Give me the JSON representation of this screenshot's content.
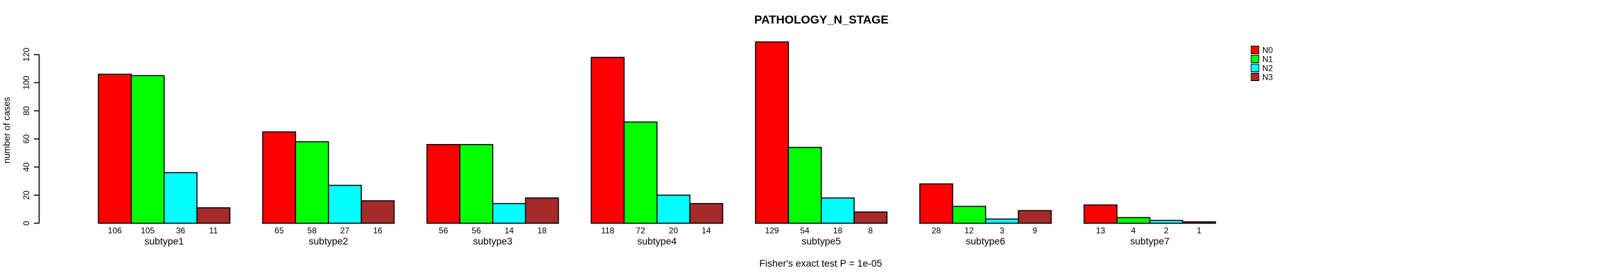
{
  "chart_data": {
    "type": "bar",
    "layout": "grouped",
    "title": "PATHOLOGY_N_STAGE",
    "ylabel": "number of cases",
    "xlabel": "",
    "annotation": "Fisher's exact test P = 1e-05",
    "categories": [
      "subtype1",
      "subtype2",
      "subtype3",
      "subtype4",
      "subtype5",
      "subtype6",
      "subtype7"
    ],
    "series": [
      {
        "name": "N0",
        "color": "#FF0000",
        "values": [
          106,
          65,
          56,
          118,
          129,
          28,
          13
        ]
      },
      {
        "name": "N1",
        "color": "#00FF00",
        "values": [
          105,
          58,
          56,
          72,
          54,
          12,
          4
        ]
      },
      {
        "name": "N2",
        "color": "#00FFFF",
        "values": [
          36,
          27,
          14,
          20,
          18,
          3,
          2
        ]
      },
      {
        "name": "N3",
        "color": "#A52A2A",
        "values": [
          11,
          16,
          18,
          14,
          8,
          9,
          1
        ]
      }
    ],
    "yticks": [
      0,
      20,
      40,
      60,
      80,
      100,
      120
    ],
    "ylim": [
      0,
      130
    ],
    "grid": false,
    "legend_position": "top-right",
    "bar_value_labels": true,
    "bar_border_color": "#000000",
    "background_color": "#FFFFFF"
  }
}
